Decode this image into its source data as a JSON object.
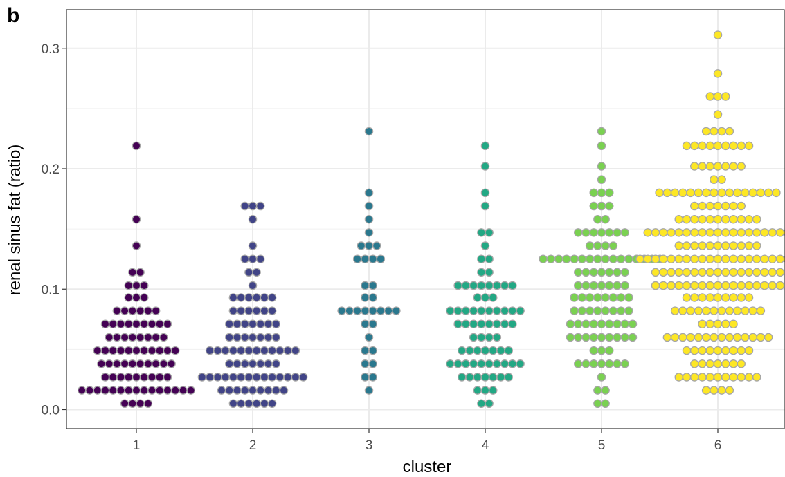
{
  "panel_label": "b",
  "chart_data": {
    "type": "scatter",
    "subtype": "beeswarm dot plot",
    "title": "",
    "xlabel": "cluster",
    "ylabel": "renal sinus fat (ratio)",
    "categories": [
      "1",
      "2",
      "3",
      "4",
      "5",
      "6"
    ],
    "ylim": [
      -0.016,
      0.33
    ],
    "yticks": [
      0.0,
      0.1,
      0.2,
      0.3
    ],
    "ytick_labels": [
      "0.0",
      "0.1",
      "0.2",
      "0.3"
    ],
    "grid": true,
    "legend": "none",
    "point_outline_color": "#a6a6a6",
    "series": [
      {
        "category": "1",
        "color": "#440154",
        "bins": [
          {
            "y": 0.005,
            "count": 4
          },
          {
            "y": 0.016,
            "count": 15
          },
          {
            "y": 0.027,
            "count": 9
          },
          {
            "y": 0.038,
            "count": 10
          },
          {
            "y": 0.049,
            "count": 11
          },
          {
            "y": 0.06,
            "count": 8
          },
          {
            "y": 0.071,
            "count": 9
          },
          {
            "y": 0.082,
            "count": 6
          },
          {
            "y": 0.093,
            "count": 3
          },
          {
            "y": 0.103,
            "count": 3
          },
          {
            "y": 0.114,
            "count": 2
          },
          {
            "y": 0.136,
            "count": 1
          },
          {
            "y": 0.158,
            "count": 1
          },
          {
            "y": 0.219,
            "count": 1
          }
        ]
      },
      {
        "category": "2",
        "color": "#414487",
        "bins": [
          {
            "y": 0.005,
            "count": 6
          },
          {
            "y": 0.016,
            "count": 9
          },
          {
            "y": 0.027,
            "count": 14
          },
          {
            "y": 0.038,
            "count": 7
          },
          {
            "y": 0.049,
            "count": 12
          },
          {
            "y": 0.06,
            "count": 7
          },
          {
            "y": 0.071,
            "count": 7
          },
          {
            "y": 0.082,
            "count": 6
          },
          {
            "y": 0.093,
            "count": 6
          },
          {
            "y": 0.103,
            "count": 1
          },
          {
            "y": 0.114,
            "count": 2
          },
          {
            "y": 0.125,
            "count": 3
          },
          {
            "y": 0.136,
            "count": 1
          },
          {
            "y": 0.158,
            "count": 1
          },
          {
            "y": 0.169,
            "count": 3
          }
        ]
      },
      {
        "category": "3",
        "color": "#2a788e",
        "bins": [
          {
            "y": 0.016,
            "count": 1
          },
          {
            "y": 0.027,
            "count": 2
          },
          {
            "y": 0.038,
            "count": 2
          },
          {
            "y": 0.049,
            "count": 2
          },
          {
            "y": 0.06,
            "count": 1
          },
          {
            "y": 0.071,
            "count": 2
          },
          {
            "y": 0.082,
            "count": 8
          },
          {
            "y": 0.093,
            "count": 2
          },
          {
            "y": 0.103,
            "count": 2
          },
          {
            "y": 0.125,
            "count": 4
          },
          {
            "y": 0.136,
            "count": 3
          },
          {
            "y": 0.147,
            "count": 1
          },
          {
            "y": 0.158,
            "count": 1
          },
          {
            "y": 0.169,
            "count": 1
          },
          {
            "y": 0.18,
            "count": 1
          },
          {
            "y": 0.231,
            "count": 1
          }
        ]
      },
      {
        "category": "4",
        "color": "#22a884",
        "bins": [
          {
            "y": 0.005,
            "count": 2
          },
          {
            "y": 0.016,
            "count": 3
          },
          {
            "y": 0.027,
            "count": 7
          },
          {
            "y": 0.038,
            "count": 10
          },
          {
            "y": 0.049,
            "count": 7
          },
          {
            "y": 0.06,
            "count": 4
          },
          {
            "y": 0.071,
            "count": 8
          },
          {
            "y": 0.082,
            "count": 10
          },
          {
            "y": 0.093,
            "count": 3
          },
          {
            "y": 0.103,
            "count": 8
          },
          {
            "y": 0.114,
            "count": 2
          },
          {
            "y": 0.125,
            "count": 2
          },
          {
            "y": 0.136,
            "count": 1
          },
          {
            "y": 0.147,
            "count": 2
          },
          {
            "y": 0.169,
            "count": 1
          },
          {
            "y": 0.18,
            "count": 1
          },
          {
            "y": 0.202,
            "count": 1
          },
          {
            "y": 0.219,
            "count": 1
          }
        ]
      },
      {
        "category": "5",
        "color": "#7ad151",
        "bins": [
          {
            "y": 0.005,
            "count": 2
          },
          {
            "y": 0.016,
            "count": 2
          },
          {
            "y": 0.027,
            "count": 1
          },
          {
            "y": 0.038,
            "count": 7
          },
          {
            "y": 0.049,
            "count": 3
          },
          {
            "y": 0.06,
            "count": 9
          },
          {
            "y": 0.071,
            "count": 9
          },
          {
            "y": 0.082,
            "count": 8
          },
          {
            "y": 0.093,
            "count": 8
          },
          {
            "y": 0.103,
            "count": 7
          },
          {
            "y": 0.114,
            "count": 7
          },
          {
            "y": 0.125,
            "count": 16
          },
          {
            "y": 0.136,
            "count": 4
          },
          {
            "y": 0.147,
            "count": 7
          },
          {
            "y": 0.158,
            "count": 2
          },
          {
            "y": 0.169,
            "count": 3
          },
          {
            "y": 0.18,
            "count": 3
          },
          {
            "y": 0.191,
            "count": 1
          },
          {
            "y": 0.202,
            "count": 1
          },
          {
            "y": 0.219,
            "count": 1
          },
          {
            "y": 0.231,
            "count": 1
          }
        ]
      },
      {
        "category": "6",
        "color": "#fde725",
        "bins": [
          {
            "y": 0.016,
            "count": 4
          },
          {
            "y": 0.027,
            "count": 11
          },
          {
            "y": 0.038,
            "count": 7
          },
          {
            "y": 0.049,
            "count": 9
          },
          {
            "y": 0.06,
            "count": 14
          },
          {
            "y": 0.071,
            "count": 5
          },
          {
            "y": 0.082,
            "count": 12
          },
          {
            "y": 0.093,
            "count": 9
          },
          {
            "y": 0.103,
            "count": 17
          },
          {
            "y": 0.114,
            "count": 17
          },
          {
            "y": 0.125,
            "count": 21
          },
          {
            "y": 0.136,
            "count": 11
          },
          {
            "y": 0.147,
            "count": 19
          },
          {
            "y": 0.158,
            "count": 11
          },
          {
            "y": 0.169,
            "count": 7
          },
          {
            "y": 0.18,
            "count": 16
          },
          {
            "y": 0.191,
            "count": 2
          },
          {
            "y": 0.202,
            "count": 7
          },
          {
            "y": 0.219,
            "count": 9
          },
          {
            "y": 0.231,
            "count": 4
          },
          {
            "y": 0.245,
            "count": 1
          },
          {
            "y": 0.26,
            "count": 3
          },
          {
            "y": 0.279,
            "count": 1
          },
          {
            "y": 0.311,
            "count": 1
          }
        ]
      }
    ]
  }
}
